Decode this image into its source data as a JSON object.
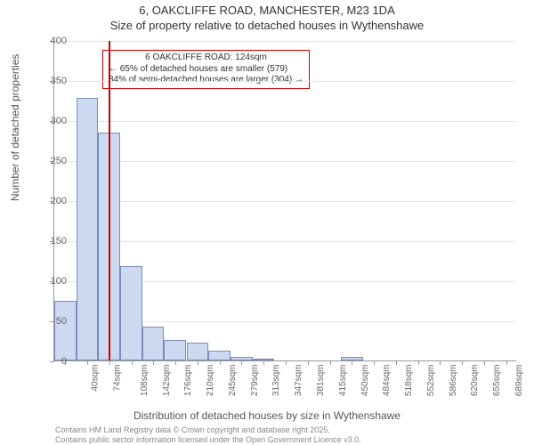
{
  "title": {
    "line1": "6, OAKCLIFFE ROAD, MANCHESTER, M23 1DA",
    "line2": "Size of property relative to detached houses in Wythenshawe"
  },
  "ylabel": "Number of detached properties",
  "xlabel": "Distribution of detached houses by size in Wythenshawe",
  "footer": {
    "line1": "Contains HM Land Registry data © Crown copyright and database right 2025.",
    "line2": "Contains public sector information licensed under the Open Government Licence v3.0."
  },
  "annotation": {
    "line1": "6 OAKCLIFFE ROAD: 124sqm",
    "line2": "← 65% of detached houses are smaller (579)",
    "line3": "34% of semi-detached houses are larger (304) →"
  },
  "chart": {
    "type": "histogram",
    "ylim": [
      0,
      400
    ],
    "ytick_step": 50,
    "background_color": "#ffffff",
    "grid_color": "#e6e6e6",
    "axis_color": "#999999",
    "bar_fill": "#cdd8f1",
    "bar_stroke": "#7a8cb8",
    "marker_color": "#cc0000",
    "marker_value": 124,
    "x_start": 40,
    "x_step": 34.15,
    "x_tick_count": 21,
    "x_tick_unit": "sqm",
    "label_fontsize": 12,
    "title_fontsize": 13,
    "tick_fontsize": 11,
    "xtick_fontsize": 10,
    "annotation_fontsize": 10,
    "footer_fontsize": 9,
    "bars": [
      {
        "x": 40,
        "value": 74
      },
      {
        "x": 74,
        "value": 328
      },
      {
        "x": 108,
        "value": 284
      },
      {
        "x": 142,
        "value": 118
      },
      {
        "x": 176,
        "value": 42
      },
      {
        "x": 210,
        "value": 26
      },
      {
        "x": 245,
        "value": 22
      },
      {
        "x": 279,
        "value": 12
      },
      {
        "x": 313,
        "value": 4
      },
      {
        "x": 347,
        "value": 2
      },
      {
        "x": 381,
        "value": 0
      },
      {
        "x": 415,
        "value": 0
      },
      {
        "x": 450,
        "value": 0
      },
      {
        "x": 484,
        "value": 4
      },
      {
        "x": 518,
        "value": 0
      },
      {
        "x": 552,
        "value": 0
      },
      {
        "x": 586,
        "value": 0
      },
      {
        "x": 620,
        "value": 0
      },
      {
        "x": 655,
        "value": 0
      },
      {
        "x": 689,
        "value": 0
      },
      {
        "x": 723,
        "value": 0
      }
    ]
  }
}
